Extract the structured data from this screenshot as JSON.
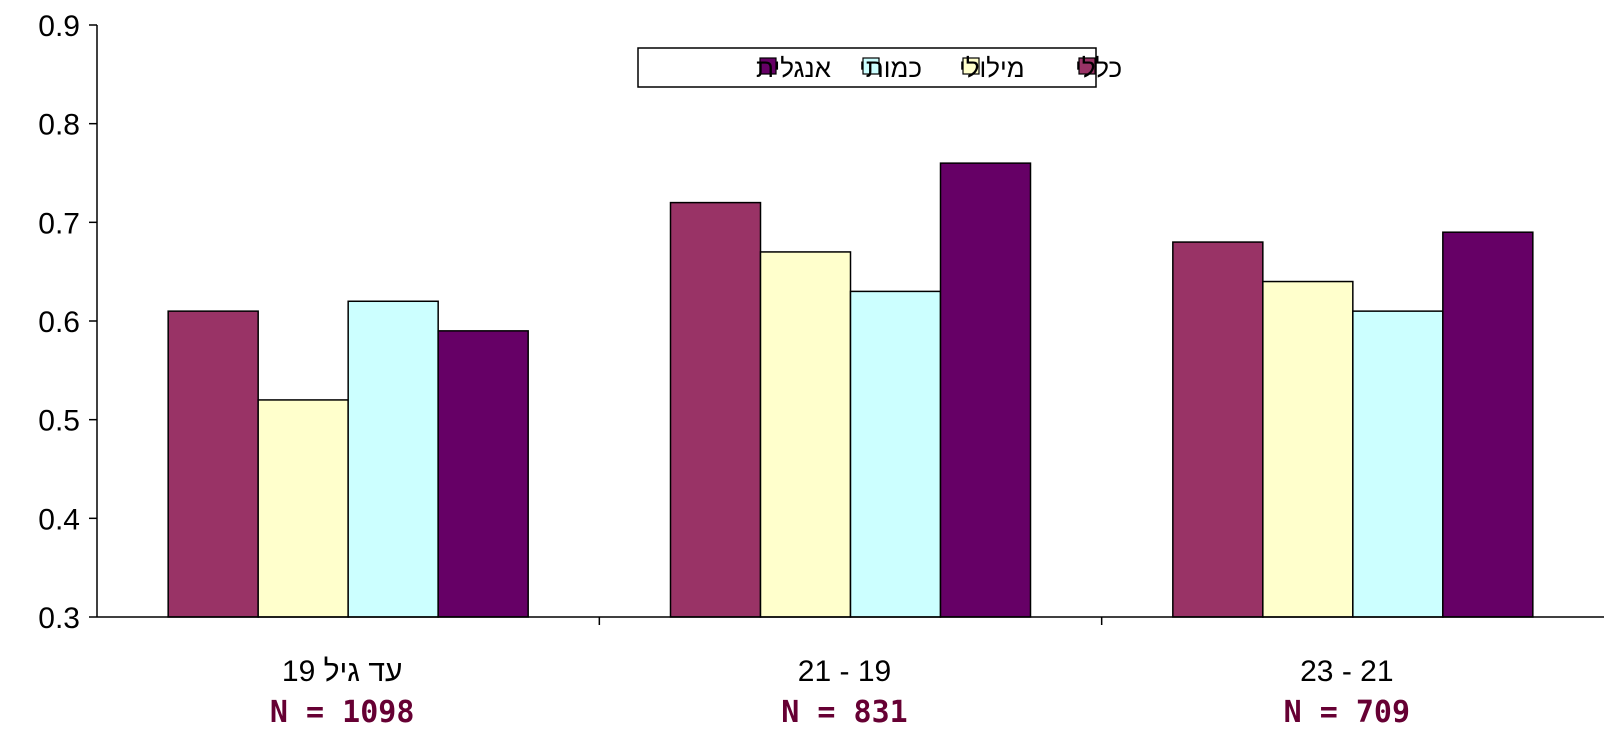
{
  "chart_data": {
    "type": "bar",
    "categories": [
      "עד גיל 19",
      "19 - 21",
      "21 - 23"
    ],
    "group_counts": [
      "N = 1098",
      "N = 831",
      "N = 709"
    ],
    "series": [
      {
        "name": "כללי",
        "values": [
          0.61,
          0.72,
          0.68
        ],
        "color": "#993366"
      },
      {
        "name": "מילולי",
        "values": [
          0.52,
          0.67,
          0.64
        ],
        "color": "#FFFFCC"
      },
      {
        "name": "כמותי",
        "values": [
          0.62,
          0.63,
          0.61
        ],
        "color": "#CCFFFF"
      },
      {
        "name": "אנגלית",
        "values": [
          0.59,
          0.76,
          0.69
        ],
        "color": "#660066"
      }
    ],
    "yticks": [
      "0.3",
      "0.4",
      "0.5",
      "0.6",
      "0.7",
      "0.8",
      "0.9"
    ],
    "ylim": [
      0.3,
      0.9
    ],
    "grid": false,
    "legend_position": "top-center"
  }
}
